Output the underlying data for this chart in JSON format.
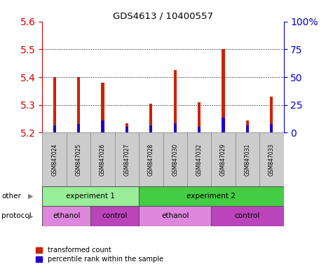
{
  "title": "GDS4613 / 10400557",
  "samples": [
    "GSM847024",
    "GSM847025",
    "GSM847026",
    "GSM847027",
    "GSM847028",
    "GSM847030",
    "GSM847032",
    "GSM847029",
    "GSM847031",
    "GSM847033"
  ],
  "red_tops": [
    5.4,
    5.4,
    5.38,
    5.235,
    5.305,
    5.425,
    5.31,
    5.5,
    5.245,
    5.33
  ],
  "blue_tops": [
    5.225,
    5.23,
    5.245,
    5.22,
    5.225,
    5.235,
    5.22,
    5.255,
    5.225,
    5.23
  ],
  "bar_bottom": 5.2,
  "ylim_left": [
    5.2,
    5.6
  ],
  "ylim_right": [
    0,
    100
  ],
  "yticks_left": [
    5.2,
    5.3,
    5.4,
    5.5,
    5.6
  ],
  "yticks_right": [
    0,
    25,
    50,
    75,
    100
  ],
  "ytick_labels_right": [
    "0",
    "25",
    "50",
    "75",
    "100%"
  ],
  "red_color": "#cc2200",
  "blue_color": "#2200cc",
  "bar_width": 0.12,
  "experiment_groups": [
    {
      "label": "experiment 1",
      "start": 0,
      "end": 4,
      "color": "#99ee99"
    },
    {
      "label": "experiment 2",
      "start": 4,
      "end": 10,
      "color": "#44cc44"
    }
  ],
  "protocol_groups": [
    {
      "label": "ethanol",
      "start": 0,
      "end": 2,
      "color": "#dd88dd"
    },
    {
      "label": "control",
      "start": 2,
      "end": 4,
      "color": "#bb44bb"
    },
    {
      "label": "ethanol",
      "start": 4,
      "end": 7,
      "color": "#dd88dd"
    },
    {
      "label": "control",
      "start": 7,
      "end": 10,
      "color": "#bb44bb"
    }
  ],
  "legend_red": "transformed count",
  "legend_blue": "percentile rank within the sample",
  "left_axis_color": "#cc0000",
  "right_axis_color": "#0000cc",
  "bg_color": "#ffffff",
  "tick_label_bg": "#cccccc",
  "grid_color": "#000000"
}
